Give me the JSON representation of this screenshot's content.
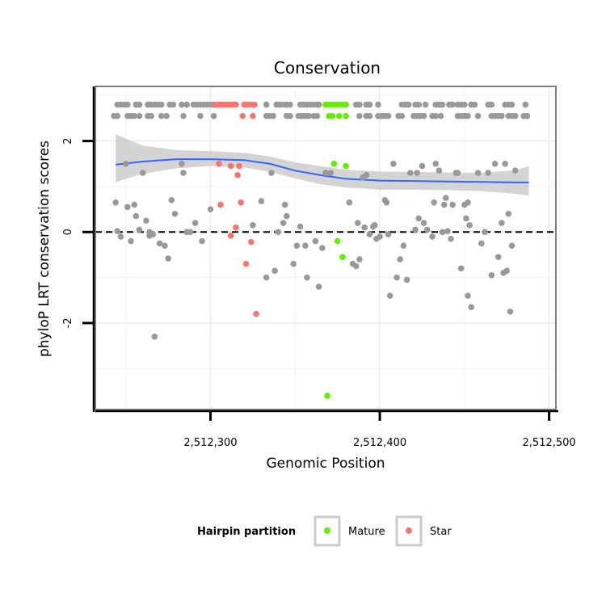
{
  "chart_data": {
    "type": "scatter",
    "title": "Conservation",
    "xlabel": "Genomic Position",
    "ylabel": "phyloP LRT conservation scores",
    "xlim": [
      2512232,
      2512504
    ],
    "ylim": [
      -3.9,
      3.2
    ],
    "x_ticks": [
      2512300,
      2512400,
      2512500
    ],
    "x_tick_labels": [
      "2,512,300",
      "2,512,400",
      "2,512,500"
    ],
    "y_ticks": [
      -2,
      0,
      2
    ],
    "y_tick_labels": [
      "-2",
      "0",
      "2"
    ],
    "y_gridlines_minor": [
      -3,
      -1,
      1,
      3
    ],
    "reference_line": {
      "y": 0,
      "style": "dashed",
      "color": "#000000"
    },
    "grid": true,
    "legend": {
      "title": "Hairpin partition",
      "position": "bottom",
      "entries": [
        {
          "label": "Mature",
          "color": "#66ee00"
        },
        {
          "label": "Star",
          "color": "#f8766d"
        }
      ]
    },
    "colors": {
      "other": "#999999",
      "Mature": "#66ee00",
      "Star": "#f8766d",
      "smooth": "#3366ff",
      "band": "#cccccc"
    },
    "series": [
      {
        "name": "Mature",
        "color": "#66ee00",
        "points": [
          [
            2512373,
            1.5
          ],
          [
            2512380,
            1.45
          ],
          [
            2512375,
            -0.2
          ],
          [
            2512378,
            -0.55
          ],
          [
            2512369,
            -3.6
          ],
          [
            2512368,
            2.8
          ],
          [
            2512370,
            2.8
          ],
          [
            2512372,
            2.8
          ],
          [
            2512374,
            2.8
          ],
          [
            2512376,
            2.8
          ],
          [
            2512378,
            2.8
          ],
          [
            2512380,
            2.8
          ],
          [
            2512370,
            2.55
          ],
          [
            2512372,
            2.55
          ],
          [
            2512376,
            2.55
          ],
          [
            2512380,
            2.55
          ]
        ]
      },
      {
        "name": "Star",
        "color": "#f8766d",
        "points": [
          [
            2512305,
            1.5
          ],
          [
            2512312,
            1.45
          ],
          [
            2512317,
            1.45
          ],
          [
            2512316,
            1.25
          ],
          [
            2512306,
            0.6
          ],
          [
            2512318,
            0.65
          ],
          [
            2512315,
            0.1
          ],
          [
            2512312,
            -0.08
          ],
          [
            2512324,
            -0.22
          ],
          [
            2512321,
            -0.7
          ],
          [
            2512327,
            -1.8
          ],
          [
            2512303,
            2.8
          ],
          [
            2512305,
            2.8
          ],
          [
            2512307,
            2.8
          ],
          [
            2512309,
            2.8
          ],
          [
            2512311,
            2.8
          ],
          [
            2512313,
            2.8
          ],
          [
            2512315,
            2.8
          ],
          [
            2512320,
            2.8
          ],
          [
            2512322,
            2.8
          ],
          [
            2512324,
            2.8
          ],
          [
            2512326,
            2.8
          ],
          [
            2512319,
            2.55
          ],
          [
            2512325,
            2.55
          ]
        ]
      },
      {
        "name": "",
        "color": "#999999",
        "points": [
          [
            2512245,
            2.8
          ],
          [
            2512247,
            2.8
          ],
          [
            2512249,
            2.8
          ],
          [
            2512251,
            2.8
          ],
          [
            2512256,
            2.8
          ],
          [
            2512258,
            2.8
          ],
          [
            2512263,
            2.8
          ],
          [
            2512265,
            2.8
          ],
          [
            2512267,
            2.8
          ],
          [
            2512269,
            2.8
          ],
          [
            2512271,
            2.8
          ],
          [
            2512276,
            2.8
          ],
          [
            2512278,
            2.8
          ],
          [
            2512283,
            2.8
          ],
          [
            2512286,
            2.8
          ],
          [
            2512290,
            2.8
          ],
          [
            2512292,
            2.8
          ],
          [
            2512294,
            2.8
          ],
          [
            2512296,
            2.8
          ],
          [
            2512298,
            2.8
          ],
          [
            2512300,
            2.8
          ],
          [
            2512302,
            2.8
          ],
          [
            2512333,
            2.8
          ],
          [
            2512339,
            2.8
          ],
          [
            2512341,
            2.8
          ],
          [
            2512343,
            2.8
          ],
          [
            2512345,
            2.8
          ],
          [
            2512347,
            2.8
          ],
          [
            2512353,
            2.8
          ],
          [
            2512355,
            2.8
          ],
          [
            2512357,
            2.8
          ],
          [
            2512359,
            2.8
          ],
          [
            2512361,
            2.8
          ],
          [
            2512363,
            2.8
          ],
          [
            2512364,
            2.8
          ],
          [
            2512386,
            2.8
          ],
          [
            2512388,
            2.8
          ],
          [
            2512392,
            2.8
          ],
          [
            2512394,
            2.8
          ],
          [
            2512399,
            2.8
          ],
          [
            2512413,
            2.8
          ],
          [
            2512415,
            2.8
          ],
          [
            2512417,
            2.8
          ],
          [
            2512421,
            2.8
          ],
          [
            2512423,
            2.8
          ],
          [
            2512427,
            2.8
          ],
          [
            2512433,
            2.8
          ],
          [
            2512435,
            2.8
          ],
          [
            2512437,
            2.8
          ],
          [
            2512441,
            2.8
          ],
          [
            2512443,
            2.8
          ],
          [
            2512446,
            2.8
          ],
          [
            2512448,
            2.8
          ],
          [
            2512450,
            2.8
          ],
          [
            2512454,
            2.8
          ],
          [
            2512456,
            2.8
          ],
          [
            2512464,
            2.8
          ],
          [
            2512466,
            2.8
          ],
          [
            2512474,
            2.8
          ],
          [
            2512476,
            2.8
          ],
          [
            2512478,
            2.8
          ],
          [
            2512486,
            2.8
          ],
          [
            2512243,
            2.55
          ],
          [
            2512245,
            2.55
          ],
          [
            2512251,
            2.55
          ],
          [
            2512253,
            2.55
          ],
          [
            2512255,
            2.55
          ],
          [
            2512258,
            2.55
          ],
          [
            2512263,
            2.55
          ],
          [
            2512265,
            2.55
          ],
          [
            2512271,
            2.55
          ],
          [
            2512274,
            2.55
          ],
          [
            2512284,
            2.55
          ],
          [
            2512294,
            2.55
          ],
          [
            2512302,
            2.55
          ],
          [
            2512333,
            2.55
          ],
          [
            2512335,
            2.55
          ],
          [
            2512337,
            2.55
          ],
          [
            2512345,
            2.55
          ],
          [
            2512347,
            2.55
          ],
          [
            2512352,
            2.55
          ],
          [
            2512354,
            2.55
          ],
          [
            2512356,
            2.55
          ],
          [
            2512358,
            2.55
          ],
          [
            2512361,
            2.55
          ],
          [
            2512363,
            2.55
          ],
          [
            2512388,
            2.55
          ],
          [
            2512392,
            2.55
          ],
          [
            2512394,
            2.55
          ],
          [
            2512399,
            2.55
          ],
          [
            2512401,
            2.55
          ],
          [
            2512403,
            2.55
          ],
          [
            2512405,
            2.55
          ],
          [
            2512411,
            2.55
          ],
          [
            2512413,
            2.55
          ],
          [
            2512420,
            2.55
          ],
          [
            2512422,
            2.55
          ],
          [
            2512424,
            2.55
          ],
          [
            2512426,
            2.55
          ],
          [
            2512431,
            2.55
          ],
          [
            2512433,
            2.55
          ],
          [
            2512436,
            2.55
          ],
          [
            2512446,
            2.55
          ],
          [
            2512448,
            2.55
          ],
          [
            2512450,
            2.55
          ],
          [
            2512452,
            2.55
          ],
          [
            2512458,
            2.55
          ],
          [
            2512466,
            2.55
          ],
          [
            2512468,
            2.55
          ],
          [
            2512470,
            2.55
          ],
          [
            2512472,
            2.55
          ],
          [
            2512476,
            2.55
          ],
          [
            2512478,
            2.55
          ],
          [
            2512480,
            2.55
          ],
          [
            2512485,
            2.55
          ],
          [
            2512487,
            2.55
          ],
          [
            2512250,
            1.5
          ],
          [
            2512244,
            0.65
          ],
          [
            2512245,
            0.02
          ],
          [
            2512247,
            -0.1
          ],
          [
            2512251,
            0.55
          ],
          [
            2512253,
            -0.2
          ],
          [
            2512255,
            0.6
          ],
          [
            2512256,
            0.35
          ],
          [
            2512258,
            0.05
          ],
          [
            2512262,
            0.25
          ],
          [
            2512264,
            0.0
          ],
          [
            2512264,
            -0.08
          ],
          [
            2512266,
            -0.05
          ],
          [
            2512260,
            1.3
          ],
          [
            2512267,
            -2.3
          ],
          [
            2512270,
            -0.25
          ],
          [
            2512273,
            -0.3
          ],
          [
            2512275,
            -0.58
          ],
          [
            2512277,
            0.7
          ],
          [
            2512279,
            0.4
          ],
          [
            2512283,
            1.5
          ],
          [
            2512284,
            1.3
          ],
          [
            2512286,
            0.0
          ],
          [
            2512288,
            0.0
          ],
          [
            2512291,
            0.2
          ],
          [
            2512295,
            -0.2
          ],
          [
            2512300,
            0.5
          ],
          [
            2512330,
            0.68
          ],
          [
            2512325,
            0.15
          ],
          [
            2512336,
            1.3
          ],
          [
            2512338,
            -0.85
          ],
          [
            2512333,
            -1.0
          ],
          [
            2512340,
            0.0
          ],
          [
            2512343,
            0.2
          ],
          [
            2512344,
            0.6
          ],
          [
            2512345,
            0.35
          ],
          [
            2512349,
            -0.7
          ],
          [
            2512351,
            -0.3
          ],
          [
            2512353,
            0.12
          ],
          [
            2512356,
            -0.3
          ],
          [
            2512357,
            -1.0
          ],
          [
            2512362,
            -0.2
          ],
          [
            2512364,
            -1.2
          ],
          [
            2512366,
            -0.35
          ],
          [
            2512368,
            1.3
          ],
          [
            2512371,
            1.3
          ],
          [
            2512382,
            0.65
          ],
          [
            2512384,
            -0.7
          ],
          [
            2512386,
            -0.75
          ],
          [
            2512387,
            0.2
          ],
          [
            2512388,
            -0.6
          ],
          [
            2512390,
            1.2
          ],
          [
            2512391,
            0.1
          ],
          [
            2512392,
            1.25
          ],
          [
            2512394,
            -0.05
          ],
          [
            2512396,
            0.12
          ],
          [
            2512397,
            0.15
          ],
          [
            2512398,
            -0.15
          ],
          [
            2512400,
            -0.1
          ],
          [
            2512403,
            0.7
          ],
          [
            2512404,
            0.65
          ],
          [
            2512405,
            -0.05
          ],
          [
            2512406,
            -1.4
          ],
          [
            2512408,
            1.5
          ],
          [
            2512410,
            -1.0
          ],
          [
            2512412,
            -0.6
          ],
          [
            2512414,
            -0.3
          ],
          [
            2512416,
            -1.05
          ],
          [
            2512418,
            1.3
          ],
          [
            2512421,
            0.05
          ],
          [
            2512422,
            1.3
          ],
          [
            2512423,
            0.3
          ],
          [
            2512425,
            1.45
          ],
          [
            2512426,
            0.2
          ],
          [
            2512428,
            0.05
          ],
          [
            2512431,
            -0.1
          ],
          [
            2512432,
            0.65
          ],
          [
            2512433,
            1.5
          ],
          [
            2512435,
            1.35
          ],
          [
            2512437,
            0.0
          ],
          [
            2512438,
            0.6
          ],
          [
            2512439,
            0.75
          ],
          [
            2512440,
            0.02
          ],
          [
            2512442,
            -0.15
          ],
          [
            2512443,
            0.6
          ],
          [
            2512445,
            1.3
          ],
          [
            2512446,
            1.3
          ],
          [
            2512448,
            -0.8
          ],
          [
            2512450,
            0.6
          ],
          [
            2512451,
            0.3
          ],
          [
            2512452,
            0.65
          ],
          [
            2512452,
            -1.4
          ],
          [
            2512453,
            0.15
          ],
          [
            2512454,
            -1.65
          ],
          [
            2512458,
            1.3
          ],
          [
            2512460,
            -0.25
          ],
          [
            2512462,
            0.0
          ],
          [
            2512464,
            1.3
          ],
          [
            2512466,
            -0.95
          ],
          [
            2512468,
            1.5
          ],
          [
            2512470,
            -0.55
          ],
          [
            2512472,
            0.2
          ],
          [
            2512473,
            -0.9
          ],
          [
            2512474,
            1.5
          ],
          [
            2512475,
            -0.85
          ],
          [
            2512476,
            0.4
          ],
          [
            2512477,
            -1.75
          ],
          [
            2512478,
            -0.3
          ],
          [
            2512480,
            1.35
          ]
        ]
      }
    ],
    "smooth": {
      "x": [
        2512244,
        2512260,
        2512280,
        2512300,
        2512320,
        2512335,
        2512350,
        2512365,
        2512380,
        2512400,
        2512420,
        2512440,
        2512460,
        2512480,
        2512488
      ],
      "y": [
        1.48,
        1.55,
        1.6,
        1.6,
        1.58,
        1.5,
        1.35,
        1.25,
        1.17,
        1.13,
        1.12,
        1.11,
        1.1,
        1.09,
        1.09
      ],
      "lower": [
        1.1,
        1.28,
        1.4,
        1.45,
        1.42,
        1.32,
        1.18,
        1.05,
        0.98,
        0.93,
        0.93,
        0.92,
        0.9,
        0.84,
        0.8
      ],
      "upper": [
        2.15,
        1.9,
        1.8,
        1.78,
        1.74,
        1.66,
        1.53,
        1.45,
        1.37,
        1.33,
        1.32,
        1.31,
        1.3,
        1.36,
        1.45
      ]
    }
  }
}
